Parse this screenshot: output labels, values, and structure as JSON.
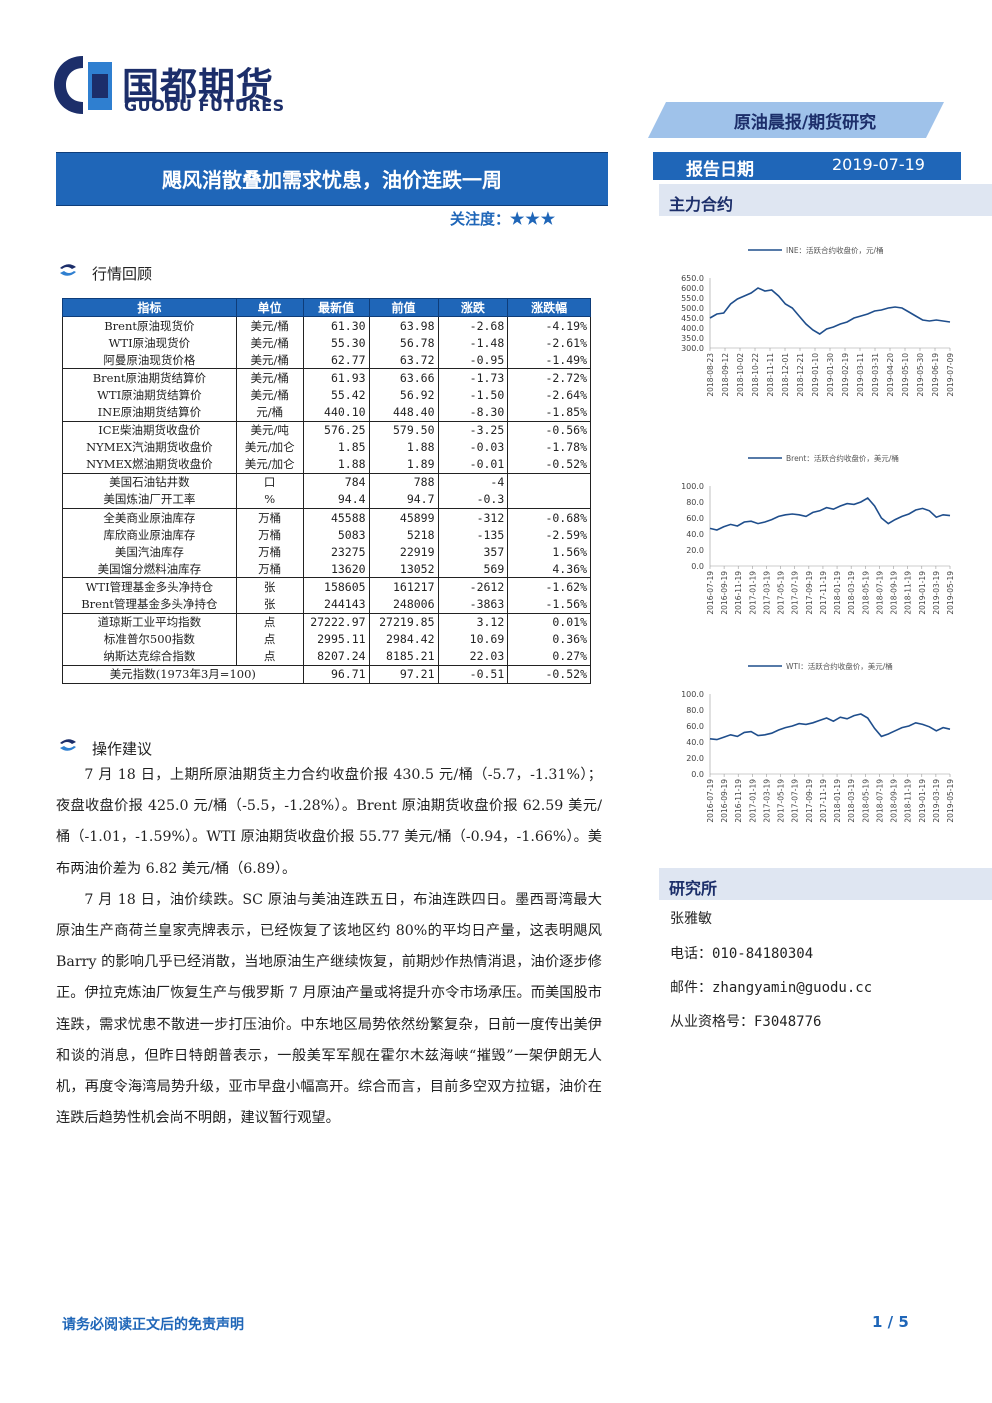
{
  "header": {
    "logo_cn": "国都期货",
    "logo_en": "GUODU FUTURES",
    "report_type": "原油晨报/期货研究",
    "title": "飓风消散叠加需求忧患，油价连跌一周",
    "attention_label": "关注度：",
    "attention_stars": "★★★",
    "date_label": "报告日期",
    "date_value": "2019-07-19"
  },
  "sections": {
    "market_review": "行情回顾",
    "operation": "操作建议",
    "main_contract": "主力合约",
    "institute": "研究所"
  },
  "table": {
    "headers": [
      "指标",
      "单位",
      "最新值",
      "前值",
      "涨跌",
      "涨跌幅"
    ],
    "rows": [
      [
        "Brent原油现货价",
        "美元/桶",
        "61.30",
        "63.98",
        "-2.68",
        "-4.19%"
      ],
      [
        "WTI原油现货价",
        "美元/桶",
        "55.30",
        "56.78",
        "-1.48",
        "-2.61%"
      ],
      [
        "阿曼原油现货价格",
        "美元/桶",
        "62.77",
        "63.72",
        "-0.95",
        "-1.49%"
      ],
      [
        "Brent原油期货结算价",
        "美元/桶",
        "61.93",
        "63.66",
        "-1.73",
        "-2.72%"
      ],
      [
        "WTI原油期货结算价",
        "美元/桶",
        "55.42",
        "56.92",
        "-1.50",
        "-2.64%"
      ],
      [
        "INE原油期货结算价",
        "元/桶",
        "440.10",
        "448.40",
        "-8.30",
        "-1.85%"
      ],
      [
        "ICE柴油期货收盘价",
        "美元/吨",
        "576.25",
        "579.50",
        "-3.25",
        "-0.56%"
      ],
      [
        "NYMEX汽油期货收盘价",
        "美元/加仑",
        "1.85",
        "1.88",
        "-0.03",
        "-1.78%"
      ],
      [
        "NYMEX燃油期货收盘价",
        "美元/加仑",
        "1.88",
        "1.89",
        "-0.01",
        "-0.52%"
      ],
      [
        "美国石油钻井数",
        "口",
        "784",
        "788",
        "-4",
        ""
      ],
      [
        "美国炼油厂开工率",
        "%",
        "94.4",
        "94.7",
        "-0.3",
        ""
      ],
      [
        "全美商业原油库存",
        "万桶",
        "45588",
        "45899",
        "-312",
        "-0.68%"
      ],
      [
        "库欣商业原油库存",
        "万桶",
        "5083",
        "5218",
        "-135",
        "-2.59%"
      ],
      [
        "美国汽油库存",
        "万桶",
        "23275",
        "22919",
        "357",
        "1.56%"
      ],
      [
        "美国馏分燃料油库存",
        "万桶",
        "13620",
        "13052",
        "569",
        "4.36%"
      ],
      [
        "WTI管理基金多头净持仓",
        "张",
        "158605",
        "161217",
        "-2612",
        "-1.62%"
      ],
      [
        "Brent管理基金多头净持仓",
        "张",
        "244143",
        "248006",
        "-3863",
        "-1.56%"
      ],
      [
        "道琼斯工业平均指数",
        "点",
        "27222.97",
        "27219.85",
        "3.12",
        "0.01%"
      ],
      [
        "标准普尔500指数",
        "点",
        "2995.11",
        "2984.42",
        "10.69",
        "0.36%"
      ],
      [
        "纳斯达克综合指数",
        "点",
        "8207.24",
        "8185.21",
        "22.03",
        "0.27%"
      ],
      [
        "美元指数(1973年3月=100)",
        "",
        "96.71",
        "97.21",
        "-0.51",
        "-0.52%"
      ]
    ]
  },
  "paragraphs": [
    "7 月 18 日，上期所原油期货主力合约收盘价报 430.5 元/桶（-5.7，-1.31%）；夜盘收盘价报 425.0 元/桶（-5.5，-1.28%）。Brent 原油期货收盘价报 62.59 美元/桶（-1.01，-1.59%）。WTI 原油期货收盘价报 55.77 美元/桶（-0.94，-1.66%）。美布两油价差为 6.82 美元/桶（6.89）。",
    "7 月 18 日，油价续跌。SC 原油与美油连跌五日，布油连跌四日。墨西哥湾最大原油生产商荷兰皇家壳牌表示，已经恢复了该地区约 80%的平均日产量，这表明飓风 Barry 的影响几乎已经消散，当地原油生产继续恢复，前期炒作热情消退，油价逐步修正。伊拉克炼油厂恢复生产与俄罗斯 7 月原油产量或将提升亦令市场承压。而美国股市连跌，需求忧患不散进一步打压油价。中东地区局势依然纷繁复杂，日前一度传出美伊和谈的消息，但昨日特朗普表示，一般美军军舰在霍尔木兹海峡“摧毁”一架伊朗无人机，再度令海湾局势升级，亚市早盘小幅高开。综合而言，目前多空双方拉锯，油价在连跌后趋势性机会尚不明朗，建议暂行观望。"
  ],
  "contact": {
    "name": "张雅敏",
    "phone": "电话：010-84180304",
    "email": "邮件：zhangyamin@guodu.cc",
    "license": "从业资格号：F3048776"
  },
  "footer": {
    "disclaimer": "请务必阅读正文后的免责声明",
    "page": "1 / 5"
  },
  "colors": {
    "brand_blue": "#1f66b8",
    "navy": "#1c2e6a",
    "line": "#1f4e8c"
  },
  "chart_data": [
    {
      "type": "line",
      "series": [
        {
          "name": "INE：活跃合约收盘价，元/桶",
          "values": [
            450,
            470,
            475,
            520,
            545,
            560,
            575,
            600,
            585,
            590,
            560,
            520,
            500,
            460,
            420,
            390,
            370,
            395,
            405,
            420,
            430,
            450,
            460,
            470,
            485,
            490,
            500,
            505,
            500,
            480,
            460,
            440,
            435,
            440,
            435,
            430
          ]
        }
      ],
      "x_ticks": [
        "2018-08-23",
        "2018-09-12",
        "2018-10-02",
        "2018-10-22",
        "2018-11-11",
        "2018-12-01",
        "2018-12-21",
        "2019-01-10",
        "2019-01-30",
        "2019-02-19",
        "2019-03-11",
        "2019-03-31",
        "2019-04-20",
        "2019-05-10",
        "2019-05-30",
        "2019-06-19",
        "2019-07-09"
      ],
      "y_ticks": [
        "650.0",
        "600.0",
        "550.0",
        "500.0",
        "450.0",
        "400.0",
        "350.0",
        "300.0"
      ],
      "ylim": [
        300,
        650
      ]
    },
    {
      "type": "line",
      "series": [
        {
          "name": "Brent：活跃合约收盘价，美元/桶",
          "values": [
            47,
            45,
            49,
            52,
            50,
            55,
            56,
            53,
            55,
            58,
            62,
            64,
            65,
            64,
            62,
            67,
            69,
            73,
            71,
            75,
            78,
            77,
            80,
            85,
            75,
            60,
            53,
            58,
            62,
            65,
            70,
            72,
            69,
            61,
            64,
            63
          ]
        }
      ],
      "x_ticks": [
        "2016-07-19",
        "2016-09-19",
        "2016-11-19",
        "2017-01-19",
        "2017-03-19",
        "2017-05-19",
        "2017-07-19",
        "2017-09-19",
        "2017-11-19",
        "2018-01-19",
        "2018-03-19",
        "2018-05-19",
        "2018-07-19",
        "2018-09-19",
        "2018-11-19",
        "2019-01-19",
        "2019-03-19",
        "2019-05-19"
      ],
      "y_ticks": [
        "100.0",
        "80.0",
        "60.0",
        "40.0",
        "20.0",
        "0.0"
      ],
      "ylim": [
        0,
        100
      ]
    },
    {
      "type": "line",
      "series": [
        {
          "name": "WTI：活跃合约收盘价，美元/桶",
          "values": [
            44,
            43,
            46,
            49,
            47,
            52,
            53,
            48,
            49,
            51,
            55,
            58,
            60,
            63,
            62,
            64,
            67,
            70,
            66,
            71,
            69,
            73,
            75,
            70,
            57,
            47,
            50,
            54,
            58,
            60,
            64,
            62,
            59,
            54,
            58,
            56
          ]
        }
      ],
      "x_ticks": [
        "2016-07-19",
        "2016-09-19",
        "2016-11-19",
        "2017-01-19",
        "2017-03-19",
        "2017-05-19",
        "2017-07-19",
        "2017-09-19",
        "2017-11-19",
        "2018-01-19",
        "2018-03-19",
        "2018-05-19",
        "2018-07-19",
        "2018-09-19",
        "2018-11-19",
        "2019-01-19",
        "2019-03-19",
        "2019-05-19"
      ],
      "y_ticks": [
        "100.0",
        "80.0",
        "60.0",
        "40.0",
        "20.0",
        "0.0"
      ],
      "ylim": [
        0,
        100
      ]
    }
  ]
}
